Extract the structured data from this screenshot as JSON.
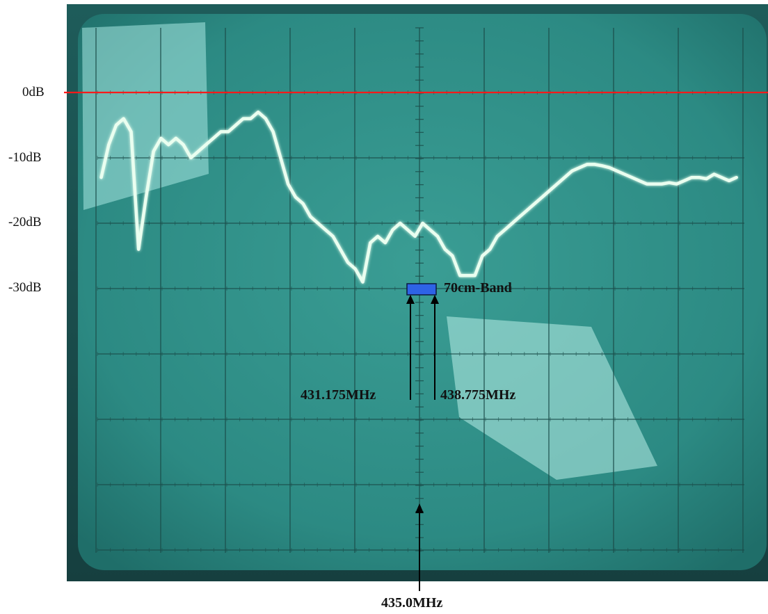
{
  "chart_data": {
    "type": "line",
    "title": "",
    "xlabel": "",
    "ylabel": "",
    "y_ticks": [
      "0dB",
      "-10dB",
      "-20dB",
      "-30dB"
    ],
    "ylim": [
      -50,
      0
    ],
    "center_label": "435.0MHz",
    "band": {
      "label": "70cm-Band",
      "lower_label": "431.175MHz",
      "upper_label": "438.775MHz",
      "level_db": -30
    },
    "series": [
      {
        "color": "#eafff0",
        "trace_db": [
          -13,
          -8,
          -5,
          -4,
          -6,
          -24,
          -16,
          -9,
          -7,
          -8,
          -7,
          -8,
          -10,
          -9,
          -8,
          -7,
          -6,
          -6,
          -5,
          -4,
          -4,
          -3,
          -4,
          -6,
          -10,
          -14,
          -16,
          -17,
          -19,
          -20,
          -21,
          -22,
          -24,
          -26,
          -27,
          -29,
          -23,
          -22,
          -23,
          -21,
          -20,
          -21,
          -22,
          -20,
          -21,
          -22,
          -24,
          -25,
          -28,
          -28,
          -28,
          -25,
          -24,
          -22,
          -21,
          -20,
          -19,
          -18,
          -17,
          -16,
          -15,
          -14,
          -13,
          -12,
          -11.5,
          -11,
          -11,
          -11.2,
          -11.5,
          -12,
          -12.5,
          -13,
          -13.5,
          -14,
          -14,
          -14,
          -13.8,
          -14,
          -13.5,
          -13,
          -13,
          -13.2,
          -12.5,
          -13,
          -13.5,
          -13
        ],
        "x_start_div": -5.2,
        "x_end_div": 5.0
      }
    ],
    "screen_color": "#2f8f87",
    "reference_line_color": "#ff1a1a",
    "band_color": "#2e63e6"
  }
}
